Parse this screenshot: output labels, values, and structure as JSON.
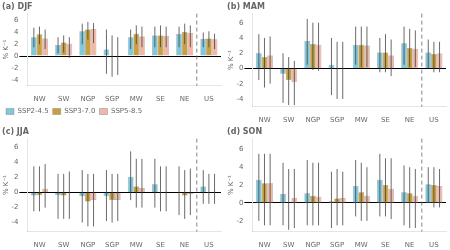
{
  "chart_data": [
    {
      "type": "bar",
      "title": "(a) DJF",
      "ylabel": "% K⁻¹",
      "categories": [
        "NW",
        "SW",
        "NGP",
        "SGP",
        "MW",
        "SE",
        "NE",
        "US"
      ],
      "series": [
        {
          "name": "SSP2-4.5",
          "color": "#82C8DC",
          "values": [
            3.2,
            1.9,
            4.2,
            1.1,
            3.2,
            3.5,
            3.8,
            2.9
          ],
          "err_low": [
            1.5,
            0.5,
            2.0,
            -3.0,
            1.2,
            1.5,
            1.5,
            1.5
          ],
          "err_high": [
            4.8,
            3.2,
            5.5,
            4.5,
            4.5,
            5.0,
            5.0,
            4.0
          ]
        },
        {
          "name": "SSP3-7.0",
          "color": "#C8A040",
          "values": [
            3.7,
            2.3,
            4.5,
            0.15,
            3.8,
            3.5,
            4.1,
            3.0
          ],
          "err_low": [
            2.0,
            0.6,
            2.8,
            -3.5,
            2.0,
            1.5,
            2.0,
            1.5
          ],
          "err_high": [
            5.0,
            3.5,
            5.8,
            3.5,
            5.2,
            5.2,
            5.5,
            4.2
          ]
        },
        {
          "name": "SSP5-8.5",
          "color": "#F0B8A8",
          "values": [
            3.0,
            2.1,
            4.6,
            0.1,
            3.3,
            3.45,
            3.9,
            2.85
          ],
          "err_low": [
            1.2,
            -0.3,
            2.2,
            -3.2,
            1.5,
            1.5,
            1.5,
            1.2
          ],
          "err_high": [
            4.5,
            3.2,
            5.6,
            3.2,
            5.0,
            5.0,
            5.2,
            3.8
          ]
        }
      ],
      "ylim": [
        -5.0,
        7.2
      ],
      "yticks": [
        -4,
        -2,
        0,
        2,
        4,
        6
      ],
      "grid": false,
      "legend": "lower left"
    },
    {
      "type": "bar",
      "title": "(b) MAM",
      "ylabel": "% K⁻¹",
      "categories": [
        "NW",
        "SW",
        "NGP",
        "SGP",
        "MW",
        "SE",
        "NE",
        "US"
      ],
      "series": [
        {
          "name": "SSP2-4.5",
          "color": "#82C8DC",
          "values": [
            2.0,
            -0.7,
            3.6,
            0.5,
            3.1,
            2.1,
            3.3,
            2.1
          ],
          "err_low": [
            -1.5,
            -4.5,
            0.5,
            -3.5,
            0.5,
            -0.5,
            0.5,
            0.0
          ],
          "err_high": [
            4.5,
            2.0,
            6.5,
            4.0,
            5.5,
            4.0,
            5.5,
            3.8
          ]
        },
        {
          "name": "SSP3-7.0",
          "color": "#C8A040",
          "values": [
            1.5,
            -1.5,
            3.2,
            -0.1,
            3.1,
            2.1,
            2.7,
            1.9
          ],
          "err_low": [
            -2.5,
            -4.8,
            -0.2,
            -4.0,
            0.2,
            -0.5,
            0.2,
            -0.5
          ],
          "err_high": [
            4.0,
            1.5,
            6.0,
            3.5,
            5.5,
            4.5,
            5.2,
            3.5
          ]
        },
        {
          "name": "SSP5-8.5",
          "color": "#F0B8A8",
          "values": [
            1.7,
            -1.8,
            3.1,
            -0.05,
            3.0,
            1.7,
            2.6,
            1.95
          ],
          "err_low": [
            -2.0,
            -4.8,
            -0.3,
            -4.0,
            0.2,
            -1.0,
            0.2,
            -0.5
          ],
          "err_high": [
            4.2,
            1.0,
            6.0,
            3.5,
            5.5,
            3.8,
            5.0,
            3.5
          ]
        }
      ],
      "ylim": [
        -5.0,
        7.2
      ],
      "yticks": [
        -4,
        -2,
        0,
        2,
        4,
        6
      ],
      "grid": false
    },
    {
      "type": "bar",
      "title": "(c) JJA",
      "ylabel": "% K⁻¹",
      "categories": [
        "NW",
        "SW",
        "NGP",
        "SGP",
        "MW",
        "SE",
        "NE",
        "US"
      ],
      "series": [
        {
          "name": "SSP2-4.5",
          "color": "#82C8DC",
          "values": [
            -0.4,
            -0.35,
            -0.5,
            -0.5,
            2.1,
            1.1,
            0.0,
            0.8
          ],
          "err_low": [
            -2.5,
            -3.5,
            -4.0,
            -3.8,
            -1.0,
            -2.0,
            -3.0,
            -1.5
          ],
          "err_high": [
            3.5,
            2.5,
            3.0,
            3.0,
            5.5,
            4.5,
            3.5,
            3.0
          ]
        },
        {
          "name": "SSP3-7.0",
          "color": "#C8A040",
          "values": [
            -0.35,
            -0.4,
            -1.2,
            -1.0,
            0.8,
            0.0,
            -0.4,
            0.05
          ],
          "err_low": [
            -2.5,
            -3.5,
            -4.5,
            -4.0,
            -2.0,
            -2.5,
            -3.5,
            -1.5
          ],
          "err_high": [
            3.5,
            2.5,
            2.5,
            2.5,
            4.5,
            3.5,
            3.0,
            2.5
          ]
        },
        {
          "name": "SSP5-8.5",
          "color": "#F0B8A8",
          "values": [
            0.5,
            0.0,
            -1.0,
            -1.0,
            0.6,
            0.1,
            -0.2,
            0.1
          ],
          "err_low": [
            -2.0,
            -3.5,
            -4.5,
            -3.8,
            -2.0,
            -2.5,
            -3.0,
            -1.5
          ],
          "err_high": [
            3.8,
            2.8,
            2.5,
            2.5,
            4.5,
            3.5,
            3.2,
            2.5
          ]
        }
      ],
      "ylim": [
        -5.2,
        7.2
      ],
      "yticks": [
        -4,
        -2,
        0,
        2,
        4,
        6
      ],
      "grid": false
    },
    {
      "type": "bar",
      "title": "(d) SON",
      "ylabel": "% K⁻¹",
      "categories": [
        "NW",
        "SW",
        "NGP",
        "SGP",
        "MW",
        "SE",
        "NE",
        "US"
      ],
      "series": [
        {
          "name": "SSP2-4.5",
          "color": "#82C8DC",
          "values": [
            2.6,
            1.0,
            1.1,
            0.2,
            1.9,
            2.6,
            1.2,
            2.1
          ],
          "err_low": [
            -2.0,
            -2.5,
            -2.5,
            -2.8,
            -1.5,
            -1.5,
            -2.5,
            0.0
          ],
          "err_high": [
            5.5,
            4.5,
            4.8,
            3.5,
            4.8,
            5.5,
            4.2,
            4.0
          ]
        },
        {
          "name": "SSP3-7.0",
          "color": "#C8A040",
          "values": [
            2.2,
            0.0,
            0.8,
            0.5,
            1.2,
            2.0,
            1.1,
            2.0
          ],
          "err_low": [
            -2.5,
            -3.0,
            -2.5,
            -2.5,
            -2.0,
            -1.5,
            -2.8,
            -0.5
          ],
          "err_high": [
            5.5,
            3.8,
            4.5,
            3.8,
            4.5,
            5.0,
            4.0,
            4.0
          ]
        },
        {
          "name": "SSP5-8.5",
          "color": "#F0B8A8",
          "values": [
            2.2,
            0.55,
            0.7,
            0.55,
            0.8,
            1.6,
            0.8,
            1.9
          ],
          "err_low": [
            -2.5,
            -2.8,
            -2.5,
            -2.5,
            -2.0,
            -1.8,
            -2.8,
            -0.5
          ],
          "err_high": [
            5.5,
            3.8,
            4.5,
            3.5,
            4.0,
            5.0,
            3.8,
            3.8
          ]
        }
      ],
      "ylim": [
        -3.2,
        7.2
      ],
      "yticks": [
        -2,
        0,
        2,
        4,
        6
      ],
      "grid": false
    }
  ]
}
